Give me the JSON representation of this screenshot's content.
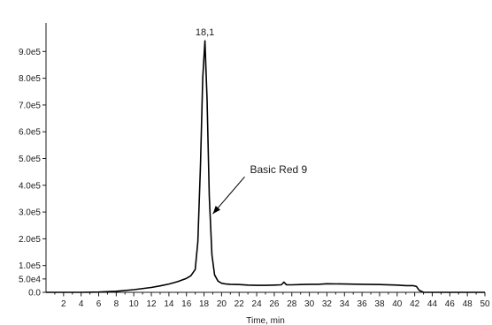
{
  "chart_data": {
    "type": "line",
    "title": "",
    "xlabel": "Time, min",
    "ylabel": "",
    "xlim": [
      0,
      50
    ],
    "ylim": [
      0,
      1000000
    ],
    "grid": false,
    "x_ticks": [
      {
        "value": 2,
        "label": "2"
      },
      {
        "value": 4,
        "label": "4"
      },
      {
        "value": 6,
        "label": "6"
      },
      {
        "value": 8,
        "label": "8"
      },
      {
        "value": 10,
        "label": "10"
      },
      {
        "value": 12,
        "label": "12"
      },
      {
        "value": 14,
        "label": "14"
      },
      {
        "value": 16,
        "label": "16"
      },
      {
        "value": 18,
        "label": "18"
      },
      {
        "value": 20,
        "label": "20"
      },
      {
        "value": 22,
        "label": "22"
      },
      {
        "value": 24,
        "label": "24"
      },
      {
        "value": 26,
        "label": "26"
      },
      {
        "value": 28,
        "label": "28"
      },
      {
        "value": 30,
        "label": "30"
      },
      {
        "value": 32,
        "label": "32"
      },
      {
        "value": 34,
        "label": "34"
      },
      {
        "value": 36,
        "label": "36"
      },
      {
        "value": 38,
        "label": "38"
      },
      {
        "value": 40,
        "label": "40"
      },
      {
        "value": 42,
        "label": "42"
      },
      {
        "value": 44,
        "label": "44"
      },
      {
        "value": 46,
        "label": "46"
      },
      {
        "value": 48,
        "label": "48"
      },
      {
        "value": 50,
        "label": "50"
      }
    ],
    "y_ticks": [
      {
        "value": 0,
        "label": "0.0"
      },
      {
        "value": 50000,
        "label": "5.0e4"
      },
      {
        "value": 100000,
        "label": "1.0e5"
      },
      {
        "value": 200000,
        "label": "2.0e5"
      },
      {
        "value": 300000,
        "label": "3.0e5"
      },
      {
        "value": 400000,
        "label": "4.0e5"
      },
      {
        "value": 500000,
        "label": "5.0e5"
      },
      {
        "value": 600000,
        "label": "6.0e5"
      },
      {
        "value": 700000,
        "label": "7.0e5"
      },
      {
        "value": 800000,
        "label": "8.0e5"
      },
      {
        "value": 900000,
        "label": "9.0e5"
      }
    ],
    "series": [
      {
        "x": [
          0,
          4,
          6,
          8,
          10,
          12,
          13,
          14,
          15,
          16,
          16.5,
          17,
          17.3,
          17.6,
          17.85,
          18.1,
          18.35,
          18.6,
          18.9,
          19.2,
          19.6,
          20,
          20.5,
          21,
          22,
          23,
          24,
          25,
          26,
          26.8,
          27.1,
          27.4,
          28,
          29,
          30,
          31,
          32,
          34,
          36,
          38,
          40,
          41,
          41.8,
          42.2,
          42.5,
          43,
          44,
          46,
          48,
          50
        ],
        "y": [
          0,
          0,
          1000,
          4000,
          10000,
          18000,
          24000,
          31000,
          40000,
          52000,
          62000,
          85000,
          190000,
          480000,
          800000,
          940000,
          720000,
          360000,
          140000,
          65000,
          42000,
          34000,
          31000,
          30000,
          29000,
          27000,
          26000,
          26000,
          27000,
          28000,
          38000,
          28000,
          28000,
          29000,
          30000,
          30000,
          32000,
          31000,
          30000,
          29000,
          27000,
          25000,
          25000,
          22000,
          8000,
          0,
          0,
          0,
          0,
          0
        ]
      }
    ],
    "annotations": [
      {
        "text": "18,1",
        "type": "peak-label",
        "x": 18.1,
        "y": 940000
      },
      {
        "text": "Basic Red 9",
        "type": "arrow-label",
        "x": 18.6,
        "y": 280000
      }
    ]
  }
}
